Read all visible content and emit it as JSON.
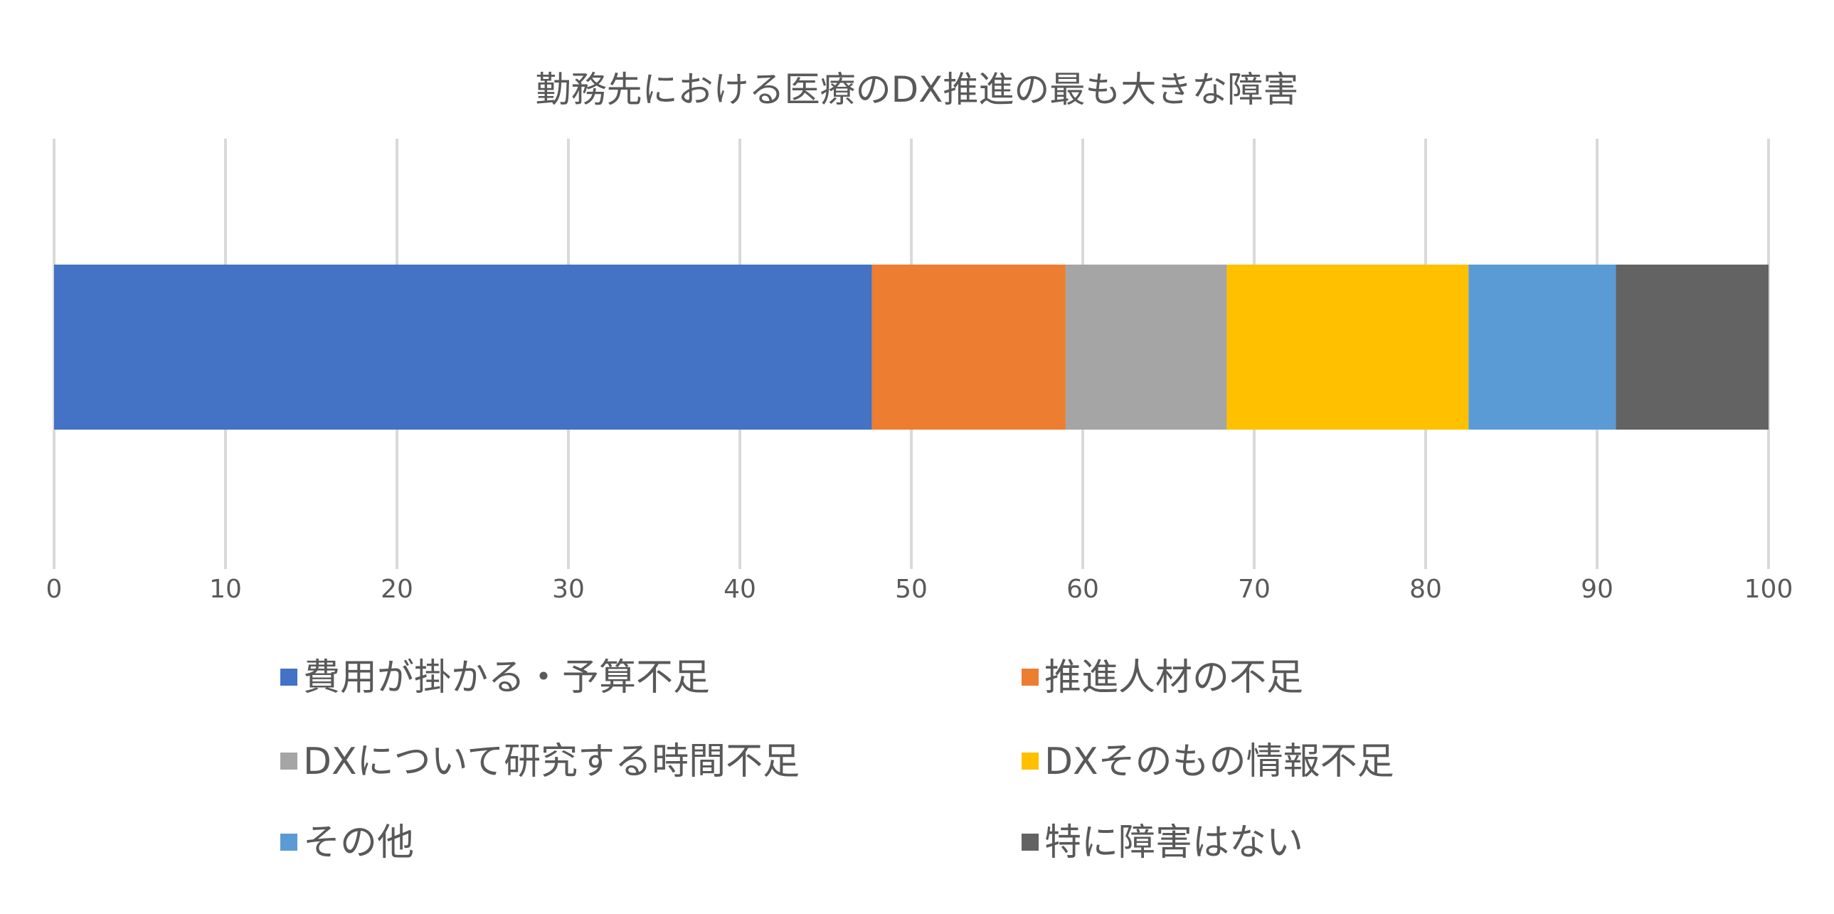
{
  "chart_data": {
    "type": "bar",
    "orientation": "horizontal",
    "stacked": true,
    "title": "勤務先における医療のDX推進の最も大きな障害",
    "xlabel": "",
    "ylabel": "",
    "xlim": [
      0,
      100
    ],
    "ticks": [
      0,
      10,
      20,
      30,
      40,
      50,
      60,
      70,
      80,
      90,
      100
    ],
    "tick_labels": [
      "0",
      "10",
      "20",
      "30",
      "40",
      "50",
      "60",
      "70",
      "80",
      "90",
      "100"
    ],
    "grid": true,
    "legend_position": "bottom",
    "series": [
      {
        "name": "費用が掛かる・予算不足",
        "value": 47.7,
        "color": "#4472C4"
      },
      {
        "name": "推進人材の不足",
        "value": 11.3,
        "color": "#ED7D31"
      },
      {
        "name": "DXについて研究する時間不足",
        "value": 9.4,
        "color": "#A5A5A5"
      },
      {
        "name": "DXそのもの情報不足",
        "value": 14.1,
        "color": "#FFC000"
      },
      {
        "name": "その他",
        "value": 8.6,
        "color": "#5B9BD5"
      },
      {
        "name": "特に障害はない",
        "value": 8.9,
        "color": "#636363"
      }
    ]
  }
}
